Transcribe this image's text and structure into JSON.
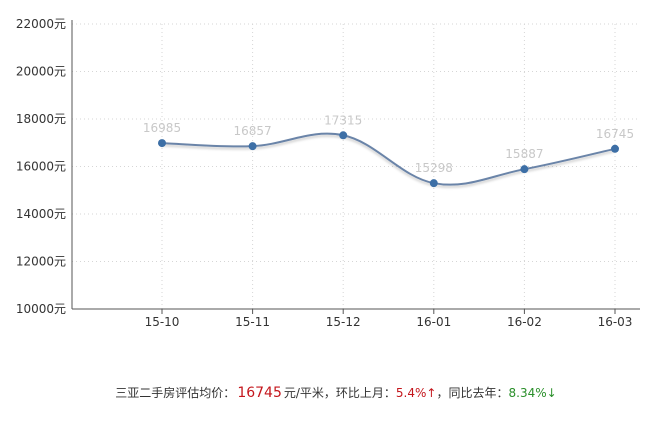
{
  "chart_data": {
    "type": "line",
    "categories": [
      "15-10",
      "15-11",
      "15-12",
      "16-01",
      "16-02",
      "16-03"
    ],
    "series": [
      {
        "values": [
          16985,
          16857,
          17315,
          15298,
          15887,
          16745
        ]
      }
    ],
    "y_ticks": [
      "10000元",
      "12000元",
      "14000元",
      "16000元",
      "18000元",
      "20000元",
      "22000元"
    ],
    "ylim": [
      10000,
      22000
    ],
    "y_step": 2000,
    "grid": true,
    "data_labels": [
      "16985",
      "16857",
      "17315",
      "15298",
      "15887",
      "16745"
    ],
    "colors": {
      "line": "#6b84a8",
      "marker": "#3d6fa6",
      "grid": "#d6d6d6",
      "axis": "#555555",
      "label": "#c8c8c8"
    }
  },
  "summary": {
    "label": "三亚二手房评估均价：",
    "price": "16745",
    "unit": "元/平米，",
    "mom_label": "环比上月：",
    "mom_value": "5.4%↑",
    "sep": "，",
    "yoy_label": "同比去年：",
    "yoy_value": "8.34%↓"
  }
}
